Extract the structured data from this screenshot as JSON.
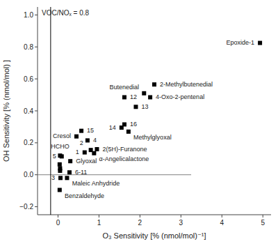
{
  "chart_data": {
    "type": "scatter",
    "xlabel": "O₃ Sensitivity [% (nmol/mol)⁻¹]",
    "ylabel": "OH Sensitivity [% (nmol/mol) ]",
    "annotation": "VOC/NOₓ = 0.8",
    "xlim": [
      -0.5,
      5.2
    ],
    "ylim": [
      -0.25,
      1.05
    ],
    "xticks": [
      0,
      1,
      2,
      3,
      4,
      5
    ],
    "yticks": [
      {
        "value": -0.2,
        "label": "−0.2"
      },
      {
        "value": 0.0,
        "label": "0.0"
      },
      0.2,
      0.4,
      0.6,
      0.8,
      {
        "value": 1.0,
        "label": "1.0"
      }
    ],
    "grid": false,
    "marker": "square",
    "color": "black",
    "x": [
      4.93,
      2.35,
      2.1,
      2.25,
      1.62,
      1.9,
      1.62,
      1.55,
      1.72,
      0.57,
      0.72,
      0.45,
      0.95,
      0.88,
      0.8,
      0.65,
      0.05,
      0.09,
      0.3,
      0.04,
      0.05,
      0.05,
      0.28,
      0.06,
      0.22,
      0.04
    ],
    "values": [
      0.825,
      0.565,
      0.51,
      0.485,
      0.485,
      0.425,
      0.315,
      0.295,
      0.27,
      0.275,
      0.215,
      0.24,
      0.16,
      0.135,
      0.155,
      0.14,
      0.12,
      0.115,
      0.085,
      0.065,
      0.04,
      0.025,
      0.015,
      -0.02,
      -0.02,
      -0.095
    ],
    "labels": [
      "Epoxide-1",
      "2-Methylbutenedial",
      "Butenedial",
      "4-Oxo-2-pentenal",
      "12",
      "13",
      "16",
      "14",
      "Methylglyoxal",
      "15",
      "4",
      "Cresol",
      "2(5H)-Furanone",
      "α-Angelicalactone",
      "2",
      "1",
      "HCHO",
      "5",
      "Glyoxal",
      null,
      null,
      null,
      "6-11",
      "3",
      "Maleic Anhydride",
      "Benzaldehyde"
    ],
    "hline": {
      "y": 0.0,
      "from": -0.5,
      "to": 3.25,
      "color": "gray"
    },
    "vline": {
      "x": -0.18,
      "from": -0.25,
      "to": 1.05,
      "color": "black"
    }
  }
}
